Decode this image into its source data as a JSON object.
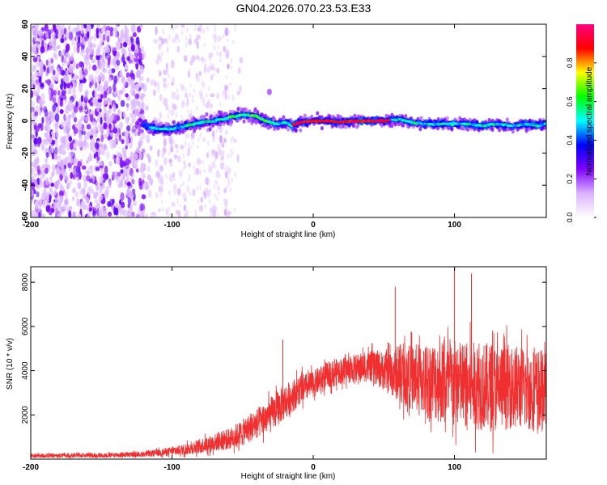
{
  "title": "GN04.2026.070.23.53.E33",
  "chart_data": [
    {
      "type": "heatmap",
      "xlabel": "Height of straight line (km)",
      "ylabel": "Frequency (Hz)",
      "xlim": [
        -200,
        165
      ],
      "ylim": [
        -60,
        60
      ],
      "xticks": [
        -200,
        -100,
        0,
        100
      ],
      "yticks": [
        -60,
        -40,
        -20,
        0,
        20,
        40,
        60
      ],
      "ridge": {
        "x": [
          -120,
          -110,
          -100,
          -90,
          -80,
          -70,
          -60,
          -50,
          -40,
          -35,
          -30,
          -25,
          -20,
          -15,
          -10,
          0,
          10,
          20,
          30,
          40,
          50,
          60,
          70,
          80,
          90,
          100,
          110,
          120,
          130,
          140,
          150,
          160,
          165
        ],
        "freq": [
          -3,
          -5,
          -5,
          -3,
          -1,
          0,
          2,
          4,
          3,
          0,
          -1,
          -2,
          -1,
          -3,
          -1,
          0,
          0,
          -1,
          0,
          0,
          0,
          1,
          -1,
          -2,
          -2,
          -2,
          -2,
          -3,
          -2,
          -3,
          -2,
          -3,
          -2
        ]
      },
      "colorbar": {
        "label": "Normalized spectral amplitude",
        "range": [
          0,
          1
        ],
        "ticks": [
          "0.0",
          "0.2",
          "0.4",
          "0.6",
          "0.8"
        ],
        "colors": [
          "#ffffff",
          "#d9b3ff",
          "#8000ff",
          "#0000ff",
          "#00ffff",
          "#00ff00",
          "#ffff00",
          "#ff0000",
          "#ff0080"
        ]
      }
    },
    {
      "type": "line",
      "xlabel": "Height of straight line (km)",
      "ylabel": "SNR (10 * v/v)",
      "xlim": [
        -200,
        165
      ],
      "ylim": [
        0,
        8700
      ],
      "xticks": [
        -200,
        -100,
        0,
        100
      ],
      "yticks": [
        2000,
        4000,
        6000,
        8000
      ],
      "series": [
        {
          "name": "SNR",
          "color": "#f03030",
          "envelope": {
            "x": [
              -200,
              -150,
              -120,
              -100,
              -90,
              -80,
              -70,
              -60,
              -50,
              -40,
              -30,
              -20,
              -10,
              0,
              10,
              20,
              30,
              40,
              50,
              60,
              70,
              80,
              90,
              100,
              110,
              120,
              130,
              140,
              150,
              160,
              165
            ],
            "mean": [
              150,
              170,
              220,
              350,
              450,
              600,
              750,
              900,
              1200,
              1600,
              2000,
              2600,
              3100,
              3400,
              3800,
              4000,
              4100,
              4200,
              4000,
              3800,
              3700,
              3600,
              3500,
              3400,
              3300,
              3300,
              3200,
              3300,
              3200,
              3100,
              3100
            ],
            "spread": [
              100,
              100,
              120,
              200,
              260,
              330,
              400,
              480,
              600,
              700,
              800,
              800,
              700,
              600,
              600,
              600,
              650,
              700,
              900,
              1200,
              1500,
              1700,
              1900,
              2000,
              2000,
              2000,
              2000,
              1900,
              1900,
              1900,
              1800
            ]
          },
          "spikes": [
            {
              "x": -21.5,
              "y": 5400
            },
            {
              "x": 100,
              "y": 8700
            },
            {
              "x": 112,
              "y": 8400
            },
            {
              "x": 58,
              "y": 7800
            }
          ]
        }
      ]
    }
  ]
}
